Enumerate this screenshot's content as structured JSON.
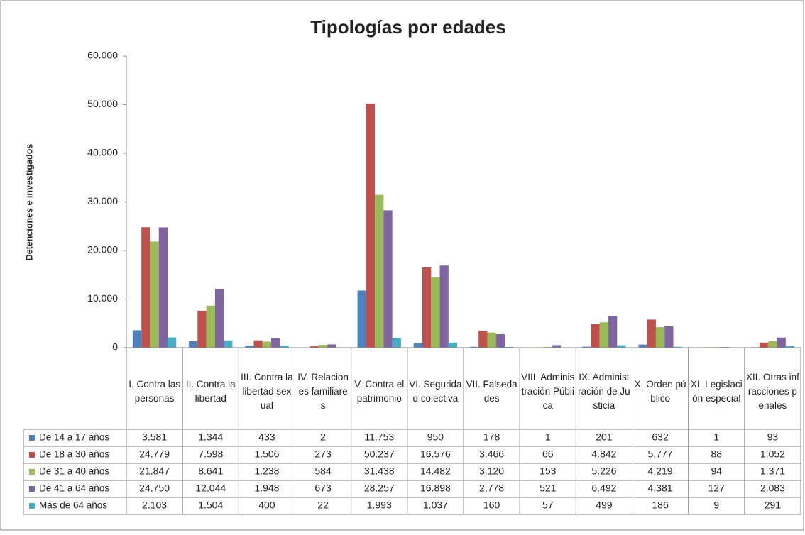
{
  "chart_data": {
    "type": "bar",
    "title": "Tipologías por edades",
    "y_label": "Detenciones e investigados",
    "categories": [
      "I. Contra las personas",
      "II. Contra la libertad",
      "III. Contra la libertad sexual",
      "IV. Relaciones familiares",
      "V. Contra el patrimonio",
      "VI. Seguridad colectiva",
      "VII. Falsedades",
      "VIII. Administración Pública",
      "IX. Administración de Justicia",
      "X. Orden público",
      "XI. Legislación especial",
      "XII. Otras infracciones penales"
    ],
    "series": [
      {
        "name": "De 14 a 17 años",
        "color": "#4f81bd",
        "values": [
          3581,
          1344,
          433,
          2,
          11753,
          950,
          178,
          1,
          201,
          632,
          1,
          93
        ],
        "value_labels": [
          "3.581",
          "1.344",
          "433",
          "2",
          "11.753",
          "950",
          "178",
          "1",
          "201",
          "632",
          "1",
          "93"
        ]
      },
      {
        "name": "De 18 a 30 años",
        "color": "#c0504d",
        "values": [
          24779,
          7598,
          1506,
          273,
          50237,
          16576,
          3466,
          66,
          4842,
          5777,
          88,
          1052
        ],
        "value_labels": [
          "24.779",
          "7.598",
          "1.506",
          "273",
          "50.237",
          "16.576",
          "3.466",
          "66",
          "4.842",
          "5.777",
          "88",
          "1.052"
        ]
      },
      {
        "name": "De 31 a 40 años",
        "color": "#9bbb59",
        "values": [
          21847,
          8641,
          1238,
          584,
          31438,
          14482,
          3120,
          153,
          5226,
          4219,
          94,
          1371
        ],
        "value_labels": [
          "21.847",
          "8.641",
          "1.238",
          "584",
          "31.438",
          "14.482",
          "3.120",
          "153",
          "5.226",
          "4.219",
          "94",
          "1.371"
        ]
      },
      {
        "name": "De 41 a 64 años",
        "color": "#8064a2",
        "values": [
          24750,
          12044,
          1948,
          673,
          28257,
          16898,
          2778,
          521,
          6492,
          4381,
          127,
          2083
        ],
        "value_labels": [
          "24.750",
          "12.044",
          "1.948",
          "673",
          "28.257",
          "16.898",
          "2.778",
          "521",
          "6.492",
          "4.381",
          "127",
          "2.083"
        ]
      },
      {
        "name": "Más de 64 años",
        "color": "#4bacc6",
        "values": [
          2103,
          1504,
          400,
          22,
          1993,
          1037,
          160,
          57,
          499,
          186,
          9,
          291
        ],
        "value_labels": [
          "2.103",
          "1.504",
          "400",
          "22",
          "1.993",
          "1.037",
          "160",
          "57",
          "499",
          "186",
          "9",
          "291"
        ]
      }
    ],
    "ylim": [
      0,
      60000
    ],
    "yticks": [
      0,
      {
        "value": 10000,
        "label": "10.000"
      },
      {
        "value": 20000,
        "label": "20.000"
      },
      {
        "value": 30000,
        "label": "30.000"
      },
      {
        "value": 40000,
        "label": "40.000"
      },
      {
        "value": 50000,
        "label": "50.000"
      },
      {
        "value": 60000,
        "label": "60.000"
      }
    ],
    "grid": false
  }
}
